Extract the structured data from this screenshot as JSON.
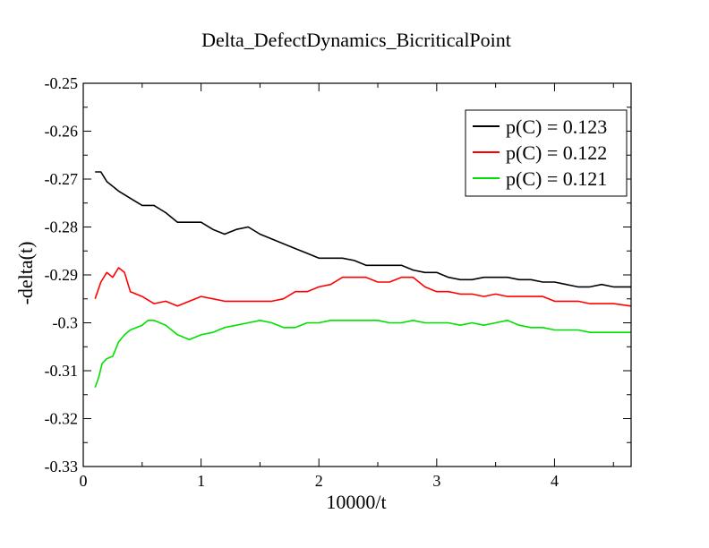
{
  "chart_data": {
    "type": "line",
    "title": "Delta_DefectDynamics_BicriticalPoint",
    "xlabel": "10000/t",
    "ylabel": "-delta(t)",
    "xlim": [
      0,
      4.65
    ],
    "ylim": [
      -0.33,
      -0.25
    ],
    "x_ticks": [
      0,
      1,
      2,
      3,
      4
    ],
    "x_tick_labels": [
      "0",
      "1",
      "2",
      "3",
      "4"
    ],
    "y_ticks": [
      -0.25,
      -0.26,
      -0.27,
      -0.28,
      -0.29,
      -0.3,
      -0.31,
      -0.32,
      -0.33
    ],
    "y_tick_labels": [
      "-0.25",
      "-0.26",
      "-0.27",
      "-0.28",
      "-0.29",
      "-0.3",
      "-0.31",
      "-0.32",
      "-0.33"
    ],
    "grid": false,
    "legend_position": "top-right",
    "series": [
      {
        "name": "p(C) = 0.123",
        "color": "#000000",
        "x": [
          0.1,
          0.15,
          0.2,
          0.3,
          0.4,
          0.5,
          0.6,
          0.7,
          0.8,
          0.9,
          1.0,
          1.1,
          1.2,
          1.3,
          1.4,
          1.5,
          1.6,
          1.7,
          1.8,
          1.9,
          2.0,
          2.1,
          2.2,
          2.3,
          2.4,
          2.5,
          2.6,
          2.7,
          2.8,
          2.9,
          3.0,
          3.1,
          3.2,
          3.3,
          3.4,
          3.5,
          3.6,
          3.7,
          3.8,
          3.9,
          4.0,
          4.1,
          4.2,
          4.3,
          4.4,
          4.5,
          4.65
        ],
        "y": [
          -0.2685,
          -0.2685,
          -0.2705,
          -0.2725,
          -0.274,
          -0.2755,
          -0.2755,
          -0.277,
          -0.279,
          -0.279,
          -0.279,
          -0.2805,
          -0.2815,
          -0.2805,
          -0.28,
          -0.2815,
          -0.2825,
          -0.2835,
          -0.2845,
          -0.2855,
          -0.2865,
          -0.2865,
          -0.2865,
          -0.287,
          -0.288,
          -0.288,
          -0.288,
          -0.288,
          -0.289,
          -0.2895,
          -0.2895,
          -0.2905,
          -0.291,
          -0.291,
          -0.2905,
          -0.2905,
          -0.2905,
          -0.291,
          -0.291,
          -0.2915,
          -0.2915,
          -0.292,
          -0.2925,
          -0.2925,
          -0.292,
          -0.2925,
          -0.2925
        ]
      },
      {
        "name": "p(C) = 0.122",
        "color": "#ff0000",
        "x": [
          0.1,
          0.15,
          0.2,
          0.25,
          0.3,
          0.35,
          0.4,
          0.5,
          0.6,
          0.7,
          0.8,
          0.9,
          1.0,
          1.1,
          1.2,
          1.3,
          1.4,
          1.5,
          1.6,
          1.7,
          1.8,
          1.9,
          2.0,
          2.1,
          2.2,
          2.3,
          2.4,
          2.5,
          2.6,
          2.7,
          2.8,
          2.9,
          3.0,
          3.1,
          3.2,
          3.3,
          3.4,
          3.5,
          3.6,
          3.7,
          3.8,
          3.9,
          4.0,
          4.1,
          4.2,
          4.3,
          4.4,
          4.5,
          4.65
        ],
        "y": [
          -0.295,
          -0.2915,
          -0.2895,
          -0.2905,
          -0.2885,
          -0.2895,
          -0.2935,
          -0.2945,
          -0.296,
          -0.2955,
          -0.2965,
          -0.2955,
          -0.2945,
          -0.295,
          -0.2955,
          -0.2955,
          -0.2955,
          -0.2955,
          -0.2955,
          -0.295,
          -0.2935,
          -0.2935,
          -0.2925,
          -0.292,
          -0.2905,
          -0.2905,
          -0.2905,
          -0.2915,
          -0.2915,
          -0.2905,
          -0.2905,
          -0.2925,
          -0.2935,
          -0.2935,
          -0.294,
          -0.294,
          -0.2945,
          -0.294,
          -0.2945,
          -0.2945,
          -0.2945,
          -0.2945,
          -0.2955,
          -0.2955,
          -0.2955,
          -0.296,
          -0.296,
          -0.296,
          -0.2965
        ]
      },
      {
        "name": "p(C) = 0.121",
        "color": "#00e000",
        "x": [
          0.1,
          0.13,
          0.16,
          0.2,
          0.25,
          0.3,
          0.35,
          0.4,
          0.5,
          0.55,
          0.6,
          0.7,
          0.8,
          0.9,
          1.0,
          1.1,
          1.2,
          1.3,
          1.4,
          1.5,
          1.6,
          1.7,
          1.8,
          1.9,
          2.0,
          2.1,
          2.2,
          2.3,
          2.4,
          2.5,
          2.6,
          2.7,
          2.8,
          2.9,
          3.0,
          3.1,
          3.2,
          3.3,
          3.4,
          3.5,
          3.6,
          3.7,
          3.8,
          3.9,
          4.0,
          4.1,
          4.2,
          4.3,
          4.4,
          4.5,
          4.65
        ],
        "y": [
          -0.3135,
          -0.3115,
          -0.3085,
          -0.3075,
          -0.307,
          -0.304,
          -0.3025,
          -0.3015,
          -0.3005,
          -0.2995,
          -0.2995,
          -0.3005,
          -0.3025,
          -0.3035,
          -0.3025,
          -0.302,
          -0.301,
          -0.3005,
          -0.3,
          -0.2995,
          -0.3,
          -0.301,
          -0.301,
          -0.3,
          -0.3,
          -0.2995,
          -0.2995,
          -0.2995,
          -0.2995,
          -0.2995,
          -0.3,
          -0.3,
          -0.2995,
          -0.3,
          -0.3,
          -0.3,
          -0.3005,
          -0.3,
          -0.3005,
          -0.3,
          -0.2995,
          -0.3005,
          -0.301,
          -0.301,
          -0.3015,
          -0.3015,
          -0.3015,
          -0.302,
          -0.302,
          -0.302,
          -0.302
        ]
      }
    ]
  }
}
